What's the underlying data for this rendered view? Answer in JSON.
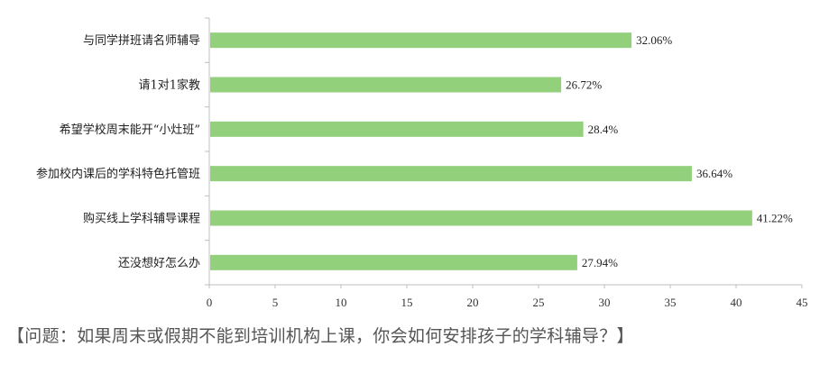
{
  "chart_data": {
    "type": "bar",
    "orientation": "horizontal",
    "categories": [
      "与同学拼班请名师辅导",
      "请1对1家教",
      "希望学校周末能开“小灶班”",
      "参加校内课后的学科特色托管班",
      "购买线上学科辅导课程",
      "还没想好怎么办"
    ],
    "values": [
      32.06,
      26.72,
      28.4,
      36.64,
      41.22,
      27.94
    ],
    "value_labels": [
      "32.06%",
      "26.72%",
      "28.4%",
      "36.64%",
      "41.22%",
      "27.94%"
    ],
    "xlim": [
      0,
      45
    ],
    "x_ticks": [
      0,
      5,
      10,
      15,
      20,
      25,
      30,
      35,
      40,
      45
    ],
    "grid": false,
    "bar_color": "#92d07c"
  },
  "caption": "【问题：如果周末或假期不能到培训机构上课，你会如何安排孩子的学科辅导？】"
}
